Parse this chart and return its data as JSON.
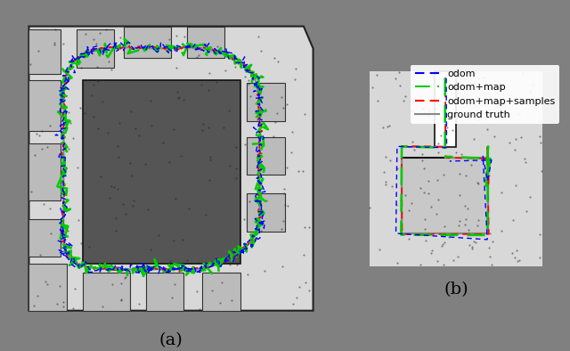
{
  "figsize": [
    6.4,
    3.94
  ],
  "dpi": 100,
  "background_color": "#808080",
  "label_a": "(a)",
  "label_b": "(b)",
  "legend_entries": [
    {
      "label": "odom",
      "color": "#0000ff",
      "linestyle": "dashed"
    },
    {
      "label": "odom+map",
      "color": "#00cc00",
      "linestyle": "dashed"
    },
    {
      "label": "odom+map+samples",
      "color": "#ff0000",
      "linestyle": "dashed"
    },
    {
      "label": "ground truth",
      "color": "#888888",
      "linestyle": "solid"
    }
  ],
  "legend_fontsize": 8,
  "subfig_label_fontsize": 14
}
